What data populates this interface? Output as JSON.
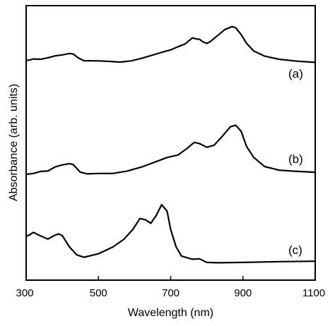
{
  "chart_data": {
    "type": "line",
    "xlabel": "Wavelength (nm)",
    "ylabel": "Absorbance (arb. units)",
    "xlim": [
      300,
      1100
    ],
    "x_ticks": [
      300,
      500,
      700,
      900,
      1100
    ],
    "x_tick_labels": [
      "300",
      "500",
      "700",
      "900",
      "1100"
    ],
    "y_ticks": "none",
    "grid": false,
    "legend": "none",
    "series": [
      {
        "name": "(a)",
        "points": [
          [
            300,
            2.02
          ],
          [
            310,
            2.06
          ],
          [
            320,
            2.14
          ],
          [
            340,
            2.12
          ],
          [
            360,
            2.24
          ],
          [
            380,
            2.4
          ],
          [
            400,
            2.48
          ],
          [
            420,
            2.6
          ],
          [
            430,
            2.56
          ],
          [
            445,
            2.22
          ],
          [
            460,
            2.0
          ],
          [
            500,
            1.98
          ],
          [
            530,
            1.94
          ],
          [
            560,
            1.88
          ],
          [
            590,
            1.98
          ],
          [
            620,
            2.2
          ],
          [
            660,
            2.56
          ],
          [
            680,
            2.74
          ],
          [
            700,
            2.9
          ],
          [
            720,
            3.16
          ],
          [
            740,
            3.4
          ],
          [
            760,
            3.9
          ],
          [
            770,
            3.82
          ],
          [
            780,
            3.78
          ],
          [
            790,
            3.56
          ],
          [
            800,
            3.44
          ],
          [
            810,
            3.6
          ],
          [
            830,
            4.1
          ],
          [
            850,
            4.6
          ],
          [
            870,
            4.84
          ],
          [
            880,
            4.74
          ],
          [
            895,
            4.18
          ],
          [
            910,
            3.44
          ],
          [
            930,
            2.8
          ],
          [
            960,
            2.38
          ],
          [
            1000,
            2.12
          ],
          [
            1050,
            1.96
          ],
          [
            1100,
            1.86
          ]
        ]
      },
      {
        "name": "(b)",
        "points": [
          [
            300,
            0.0
          ],
          [
            320,
            0.04
          ],
          [
            340,
            0.14
          ],
          [
            360,
            0.16
          ],
          [
            380,
            0.36
          ],
          [
            400,
            0.46
          ],
          [
            420,
            0.52
          ],
          [
            430,
            0.48
          ],
          [
            450,
            0.1
          ],
          [
            470,
            0.02
          ],
          [
            500,
            0.04
          ],
          [
            540,
            0.04
          ],
          [
            580,
            0.16
          ],
          [
            620,
            0.36
          ],
          [
            660,
            0.62
          ],
          [
            690,
            0.82
          ],
          [
            720,
            0.94
          ],
          [
            745,
            1.26
          ],
          [
            765,
            1.56
          ],
          [
            780,
            1.5
          ],
          [
            800,
            1.32
          ],
          [
            820,
            1.42
          ],
          [
            840,
            1.8
          ],
          [
            865,
            2.32
          ],
          [
            880,
            2.4
          ],
          [
            895,
            2.1
          ],
          [
            910,
            1.36
          ],
          [
            930,
            0.82
          ],
          [
            960,
            0.38
          ],
          [
            1000,
            0.2
          ],
          [
            1050,
            0.14
          ],
          [
            1100,
            0.1
          ]
        ]
      },
      {
        "name": "(c)",
        "points": [
          [
            300,
            1.36
          ],
          [
            310,
            1.44
          ],
          [
            320,
            1.56
          ],
          [
            340,
            1.38
          ],
          [
            360,
            1.22
          ],
          [
            380,
            1.42
          ],
          [
            390,
            1.48
          ],
          [
            400,
            1.4
          ],
          [
            420,
            0.82
          ],
          [
            440,
            0.42
          ],
          [
            460,
            0.3
          ],
          [
            500,
            0.48
          ],
          [
            540,
            0.82
          ],
          [
            570,
            1.2
          ],
          [
            595,
            1.7
          ],
          [
            615,
            2.26
          ],
          [
            630,
            2.2
          ],
          [
            645,
            2.02
          ],
          [
            660,
            2.42
          ],
          [
            675,
            2.96
          ],
          [
            690,
            2.64
          ],
          [
            700,
            1.7
          ],
          [
            715,
            0.82
          ],
          [
            730,
            0.36
          ],
          [
            760,
            0.2
          ],
          [
            780,
            0.22
          ],
          [
            800,
            0.04
          ],
          [
            830,
            0.02
          ],
          [
            900,
            0.04
          ],
          [
            1000,
            0.08
          ],
          [
            1100,
            0.1
          ]
        ]
      }
    ]
  }
}
